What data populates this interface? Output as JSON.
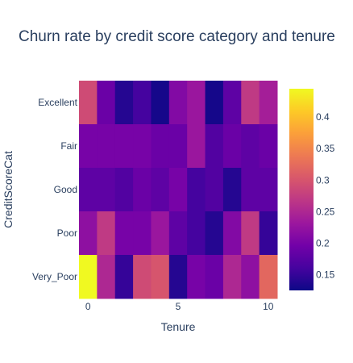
{
  "chart_data": {
    "type": "heatmap",
    "title": "Churn rate by credit score category and tenure",
    "xlabel": "Tenure",
    "ylabel": "CreditScoreCat",
    "x": [
      0,
      1,
      2,
      3,
      4,
      5,
      6,
      7,
      8,
      9,
      10
    ],
    "x_ticks": [
      "0",
      "5",
      "10"
    ],
    "y_categories": [
      "Excellent",
      "Fair",
      "Good",
      "Poor",
      "Very_Poor"
    ],
    "z": [
      [
        0.29,
        0.19,
        0.14,
        0.16,
        0.13,
        0.21,
        0.23,
        0.13,
        0.18,
        0.27,
        0.24
      ],
      [
        0.2,
        0.2,
        0.2,
        0.2,
        0.19,
        0.19,
        0.23,
        0.17,
        0.19,
        0.18,
        0.19
      ],
      [
        0.18,
        0.18,
        0.17,
        0.19,
        0.18,
        0.2,
        0.16,
        0.17,
        0.14,
        0.18,
        0.18
      ],
      [
        0.22,
        0.27,
        0.2,
        0.2,
        0.23,
        0.18,
        0.16,
        0.14,
        0.21,
        0.27,
        0.15
      ],
      [
        0.45,
        0.25,
        0.15,
        0.29,
        0.3,
        0.14,
        0.2,
        0.19,
        0.25,
        0.22,
        0.32
      ]
    ],
    "colorbar": {
      "min": 0.125,
      "max": 0.445,
      "ticks": [
        "0.15",
        "0.2",
        "0.25",
        "0.3",
        "0.35",
        "0.4"
      ],
      "tick_values": [
        0.15,
        0.2,
        0.25,
        0.3,
        0.35,
        0.4
      ]
    },
    "colorscale": [
      "#0d0887",
      "#46039f",
      "#7201a8",
      "#9c179e",
      "#bd3786",
      "#d8576b",
      "#ed7953",
      "#fb9f3a",
      "#fdca26",
      "#f0f921"
    ]
  }
}
